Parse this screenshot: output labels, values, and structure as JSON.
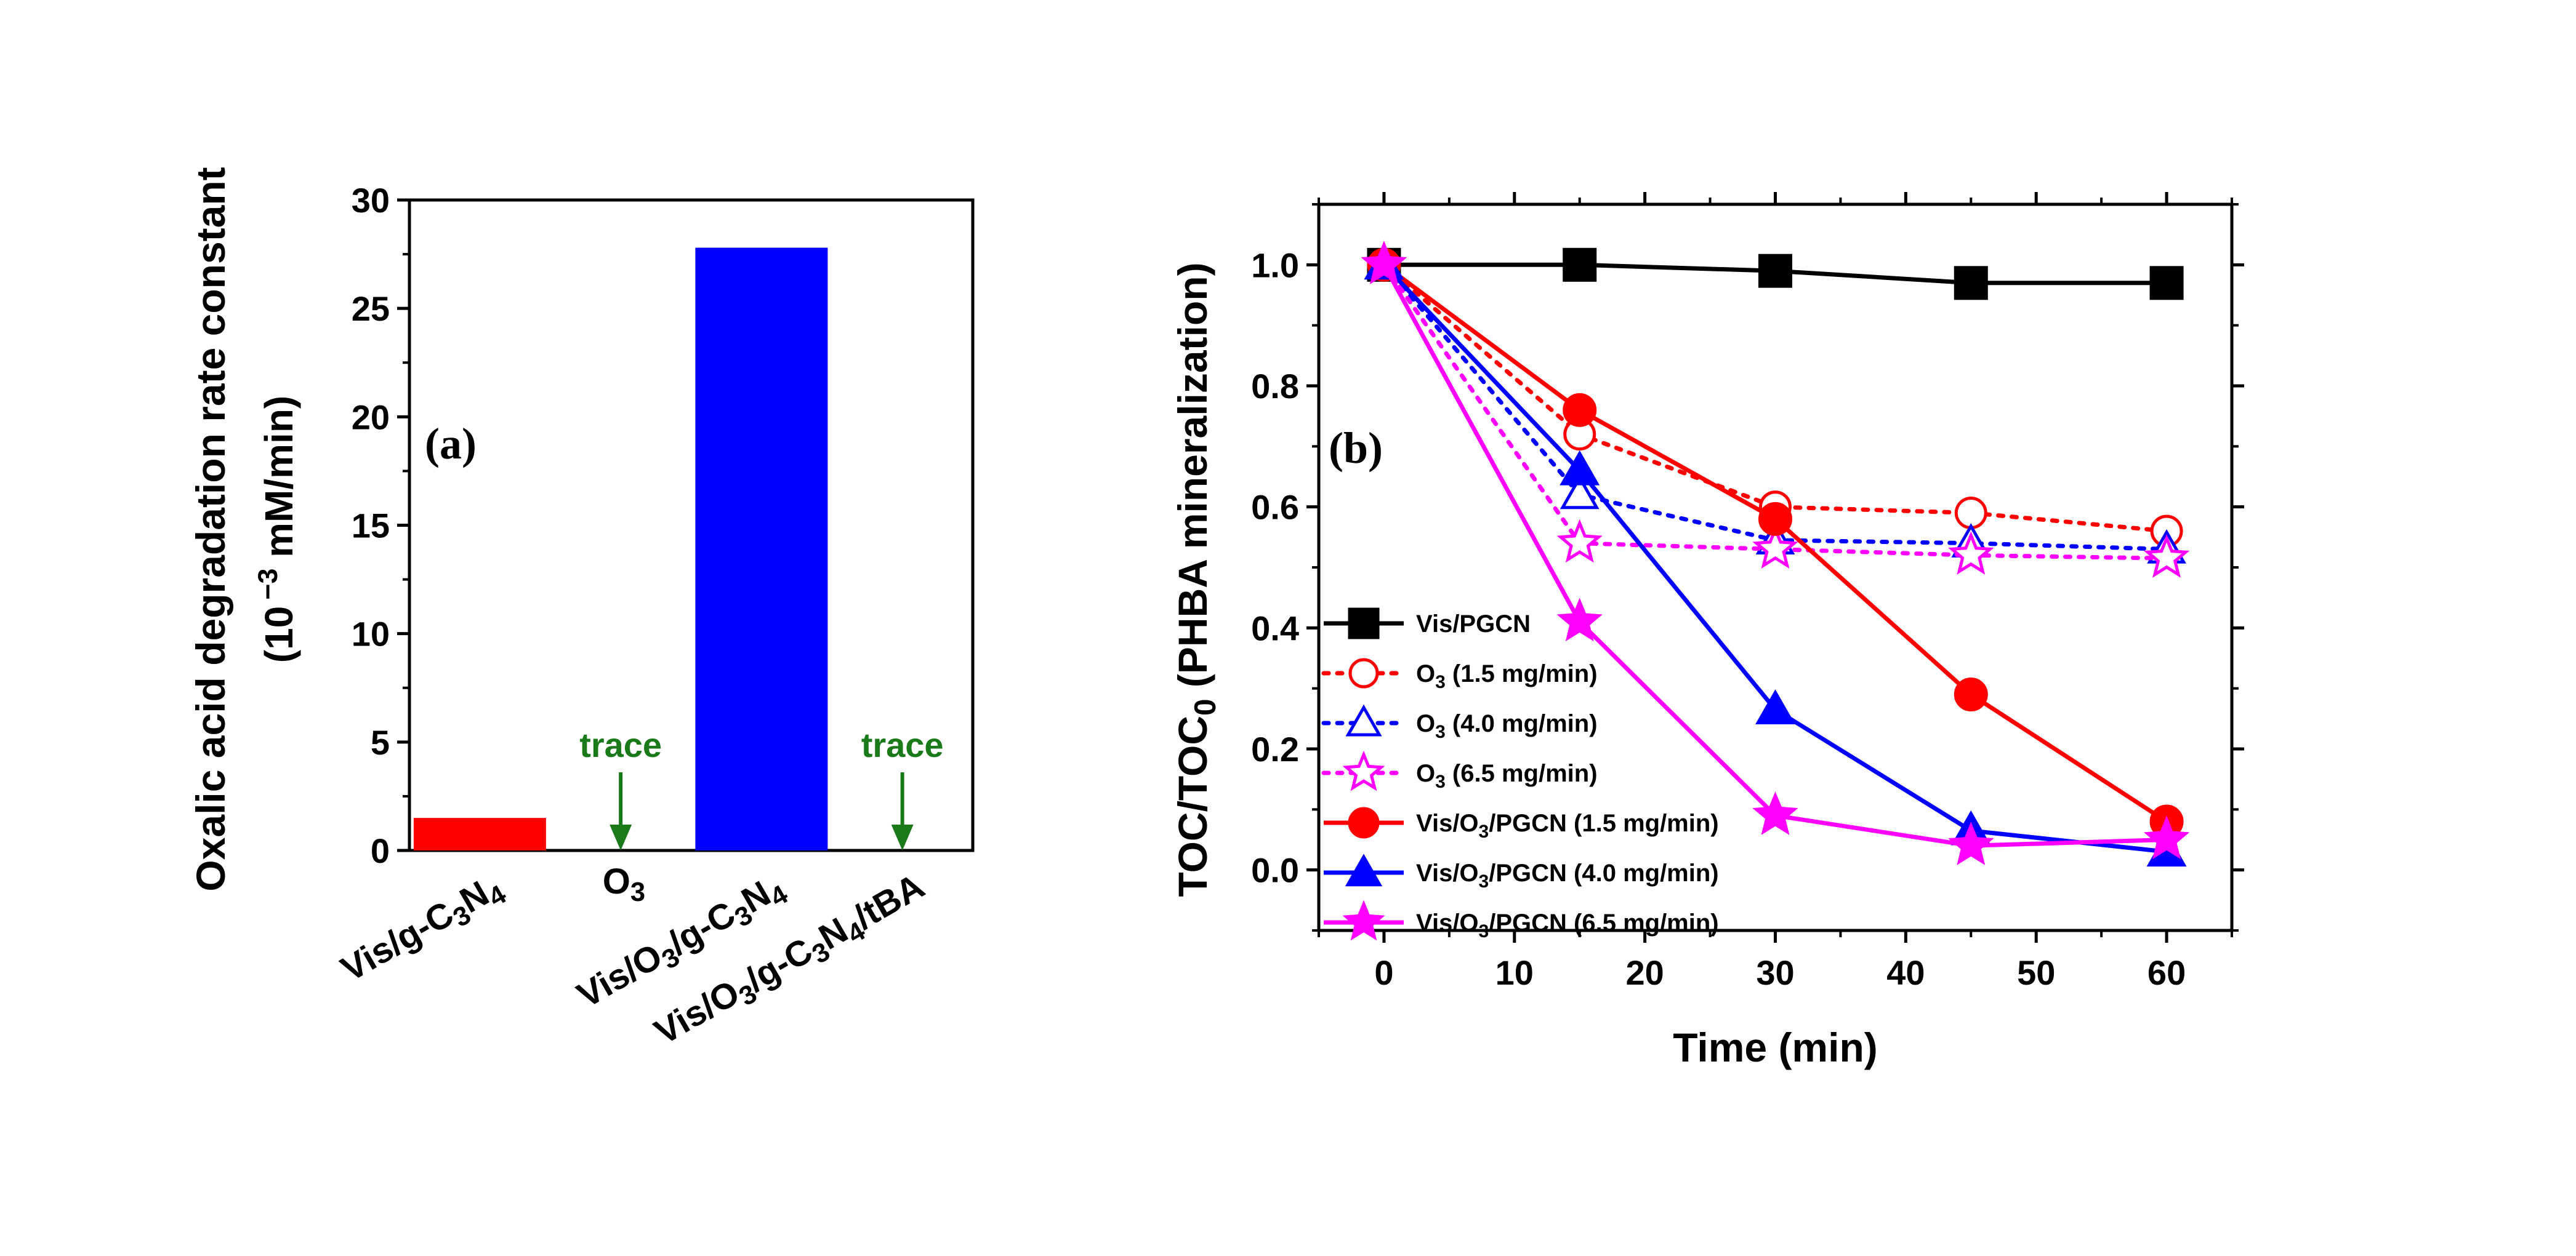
{
  "colors": {
    "black": "#000000",
    "red": "#ff0000",
    "blue": "#0000ff",
    "magenta": "#ff00ff",
    "green": "#1a7a1a"
  },
  "chart_data": [
    {
      "type": "bar",
      "panel_label": "(a)",
      "ylabel_line1": "Oxalic acid degradation rate constant",
      "ylabel_line2_prefix": "(10",
      "ylabel_line2_exp": "−3",
      "ylabel_line2_suffix": " mM/min)",
      "ylim": [
        0,
        30
      ],
      "yticks": [
        0,
        5,
        10,
        15,
        20,
        25,
        30
      ],
      "categories": [
        [
          {
            "t": "Vis/g-C"
          },
          {
            "t": "3",
            "sub": true
          },
          {
            "t": "N"
          },
          {
            "t": "4",
            "sub": true
          }
        ],
        [
          {
            "t": "O"
          },
          {
            "t": "3",
            "sub": true
          }
        ],
        [
          {
            "t": "Vis/O"
          },
          {
            "t": "3",
            "sub": true
          },
          {
            "t": "/g-C"
          },
          {
            "t": "3",
            "sub": true
          },
          {
            "t": "N"
          },
          {
            "t": "4",
            "sub": true
          }
        ],
        [
          {
            "t": "Vis/O"
          },
          {
            "t": "3",
            "sub": true
          },
          {
            "t": "/g-C"
          },
          {
            "t": "3",
            "sub": true
          },
          {
            "t": "N"
          },
          {
            "t": "4",
            "sub": true
          },
          {
            "t": "/tBA"
          }
        ]
      ],
      "values": [
        1.5,
        0,
        27.8,
        0
      ],
      "bar_colors": [
        "#ff0000",
        null,
        "#0000ff",
        null
      ],
      "annotations": [
        {
          "category_index": 1,
          "text": "trace"
        },
        {
          "category_index": 3,
          "text": "trace"
        }
      ]
    },
    {
      "type": "line",
      "panel_label": "(b)",
      "xlabel": "Time (min)",
      "ylabel_parts": [
        {
          "t": "TOC/TOC"
        },
        {
          "t": "0",
          "sub": true
        },
        {
          "t": " (PHBA mineralization)"
        }
      ],
      "xlim": [
        -5,
        65
      ],
      "ylim": [
        -0.1,
        1.1
      ],
      "xticks": [
        0,
        10,
        20,
        30,
        40,
        50,
        60
      ],
      "yticks": [
        0.0,
        0.2,
        0.4,
        0.6,
        0.8,
        1.0
      ],
      "ytick_labels": [
        "0.0",
        "0.2",
        "0.4",
        "0.6",
        "0.8",
        "1.0"
      ],
      "legend_position": "lower-left",
      "x": [
        0,
        15,
        30,
        45,
        60
      ],
      "series": [
        {
          "name_parts": [
            {
              "t": "Vis/PGCN"
            }
          ],
          "values": [
            1.0,
            1.0,
            0.99,
            0.97,
            0.97
          ],
          "color": "#000000",
          "marker": "square",
          "filled": true,
          "dashed": false
        },
        {
          "name_parts": [
            {
              "t": "O"
            },
            {
              "t": "3",
              "sub": true
            },
            {
              "t": " (1.5 mg/min)"
            }
          ],
          "values": [
            1.0,
            0.72,
            0.6,
            0.59,
            0.56
          ],
          "color": "#ff0000",
          "marker": "circle",
          "filled": false,
          "dashed": true
        },
        {
          "name_parts": [
            {
              "t": "O"
            },
            {
              "t": "3",
              "sub": true
            },
            {
              "t": " (4.0 mg/min)"
            }
          ],
          "values": [
            1.0,
            0.62,
            0.545,
            0.54,
            0.53
          ],
          "color": "#0000ff",
          "marker": "triangle",
          "filled": false,
          "dashed": true
        },
        {
          "name_parts": [
            {
              "t": "O"
            },
            {
              "t": "3",
              "sub": true
            },
            {
              "t": " (6.5 mg/min)"
            }
          ],
          "values": [
            1.0,
            0.54,
            0.53,
            0.52,
            0.515
          ],
          "color": "#ff00ff",
          "marker": "star",
          "filled": false,
          "dashed": true
        },
        {
          "name_parts": [
            {
              "t": "Vis/O"
            },
            {
              "t": "3",
              "sub": true
            },
            {
              "t": "/PGCN (1.5 mg/min)"
            }
          ],
          "values": [
            1.0,
            0.76,
            0.58,
            0.29,
            0.08
          ],
          "color": "#ff0000",
          "marker": "circle",
          "filled": true,
          "dashed": false
        },
        {
          "name_parts": [
            {
              "t": "Vis/O"
            },
            {
              "t": "3",
              "sub": true
            },
            {
              "t": "/PGCN (4.0 mg/min)"
            }
          ],
          "values": [
            1.0,
            0.66,
            0.265,
            0.065,
            0.03
          ],
          "color": "#0000ff",
          "marker": "triangle",
          "filled": true,
          "dashed": false
        },
        {
          "name_parts": [
            {
              "t": "Vis/O"
            },
            {
              "t": "3",
              "sub": true
            },
            {
              "t": "/PGCN (6.5 mg/min)"
            }
          ],
          "values": [
            1.0,
            0.41,
            0.09,
            0.04,
            0.05
          ],
          "color": "#ff00ff",
          "marker": "star",
          "filled": true,
          "dashed": false
        }
      ]
    }
  ]
}
